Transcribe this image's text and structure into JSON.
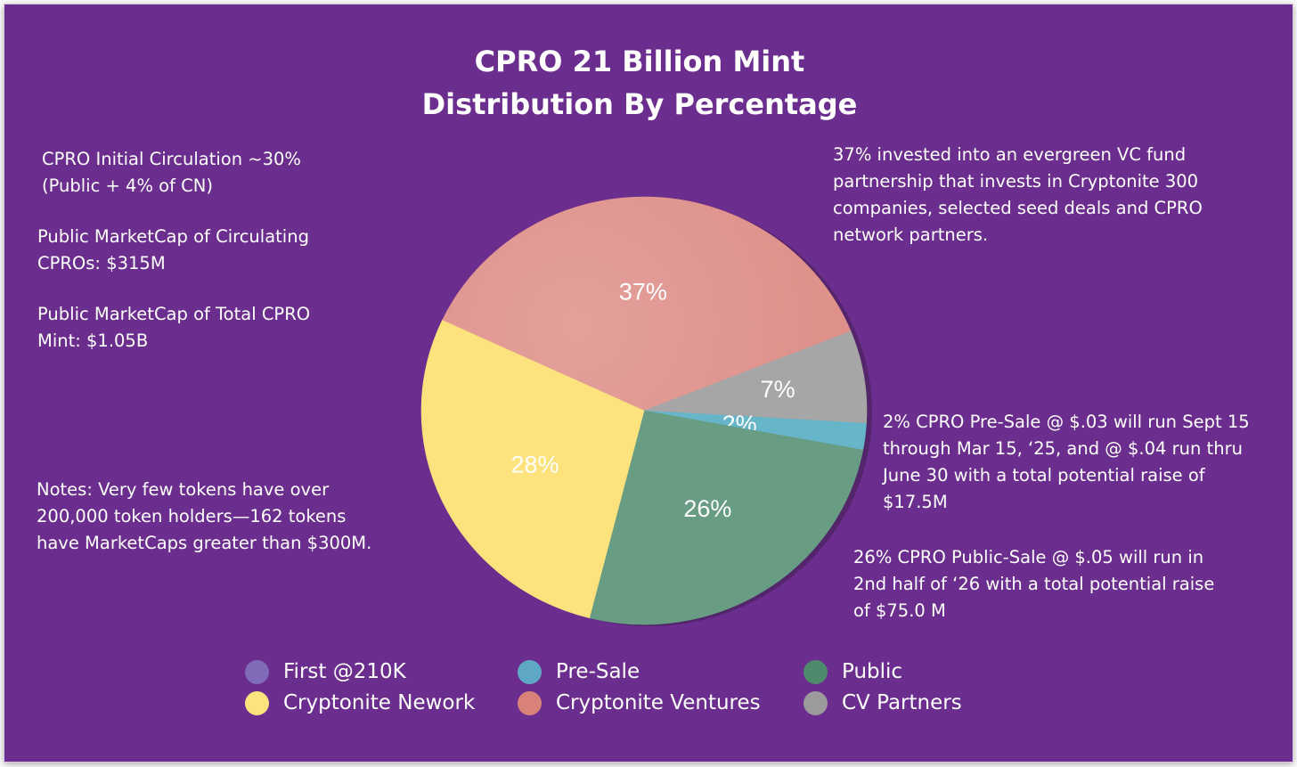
{
  "title_line1": "CPRO 21 Billion Mint",
  "title_line2": "Distribution By Percentage",
  "notes": {
    "circulation_1": "CPRO Initial Circulation ~30%",
    "circulation_2": "(Public + 4% of CN)",
    "circ_cap_1": "Public MarketCap of Circulating",
    "circ_cap_2": "CPROs: $315M",
    "total_cap_1": "Public MarketCap of Total CPRO",
    "total_cap_2": "Mint: $1.05B",
    "holders_1": "Notes: Very few tokens have over",
    "holders_2": "200,000 token holders—162 tokens",
    "holders_3": "have MarketCaps greater than $300M.",
    "ventures_1": "37% invested into an evergreen VC fund",
    "ventures_2": "partnership that invests in Cryptonite 300",
    "ventures_3": "companies, selected seed deals and CPRO",
    "ventures_4": "network partners.",
    "presale_1": "2% CPRO Pre-Sale @ $.03 will run Sept 15",
    "presale_2": "through Mar 15, ‘25, and @ $.04 run thru",
    "presale_3": "June 30 with a total potential raise of",
    "presale_4": "$17.5M",
    "public_1": "26% CPRO Public-Sale @ $.05 will run in",
    "public_2": "2nd half of ‘26 with a total potential raise",
    "public_3": "of $75.0 M"
  },
  "chart_data": {
    "type": "pie",
    "title": "CPRO 21 Billion Mint Distribution By Percentage",
    "slices": [
      {
        "name": "Cryptonite Ventures",
        "value": 37,
        "label": "37%",
        "color": "#dd8b85"
      },
      {
        "name": "CV Partners",
        "value": 7,
        "label": "7%",
        "color": "#a7a6a7"
      },
      {
        "name": "Pre-Sale",
        "value": 2,
        "label": "2%",
        "color": "#66b5c8"
      },
      {
        "name": "Public",
        "value": 26,
        "label": "26%",
        "color": "#689d84"
      },
      {
        "name": "Cryptonite Nework",
        "value": 28,
        "label": "28%",
        "color": "#fde27d"
      },
      {
        "name": "First @210K",
        "value": 0,
        "label": "",
        "color": "#7f6bb8"
      }
    ],
    "legend_position": "bottom",
    "legend": [
      {
        "name": "First @210K",
        "color": "#7f6bb8"
      },
      {
        "name": "Pre-Sale",
        "color": "#5fa8c4"
      },
      {
        "name": "Public",
        "color": "#4e8a6c"
      },
      {
        "name": "Cryptonite Nework",
        "color": "#fde27d"
      },
      {
        "name": "Cryptonite Ventures",
        "color": "#d9827a"
      },
      {
        "name": "CV Partners",
        "color": "#9c9a9c"
      }
    ]
  }
}
